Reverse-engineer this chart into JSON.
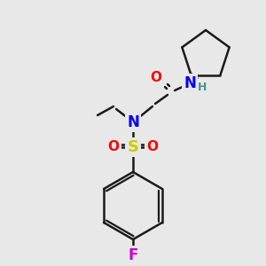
{
  "bg_color": "#e8e8e8",
  "bond_color": "#1a1a1a",
  "bond_lw": 1.8,
  "atom_colors": {
    "N": "#0000ff",
    "O": "#ff0000",
    "S": "#cccc00",
    "F": "#cc00cc",
    "H": "#4a9090",
    "C": "#1a1a1a"
  },
  "font_size": 11,
  "font_size_small": 9
}
